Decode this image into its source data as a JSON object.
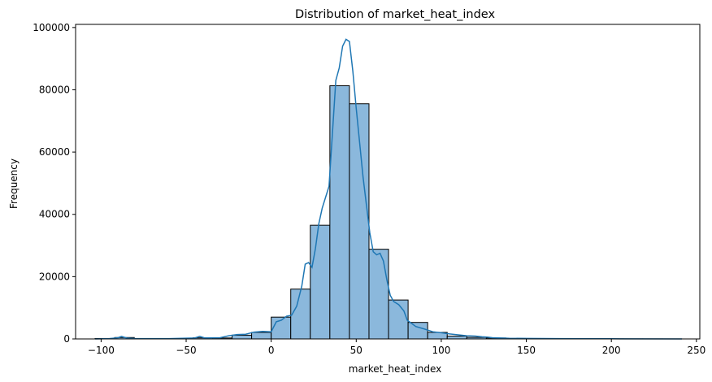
{
  "chart_data": {
    "type": "bar",
    "title": "Distribution of market_heat_index",
    "xlabel": "market_heat_index",
    "ylabel": "Frequency",
    "xlim": [
      -115,
      252
    ],
    "ylim": [
      0,
      101000
    ],
    "xticks": [
      -100,
      -50,
      0,
      50,
      100,
      150,
      200,
      250
    ],
    "xtick_labels": [
      "−100",
      "−50",
      "0",
      "50",
      "100",
      "150",
      "200",
      "250"
    ],
    "yticks": [
      0,
      20000,
      40000,
      60000,
      80000,
      100000
    ],
    "ytick_labels": [
      "0",
      "20000",
      "40000",
      "60000",
      "80000",
      "100000"
    ],
    "bins": [
      {
        "x0": -103.5,
        "x1": -92.0,
        "count": 150
      },
      {
        "x0": -92.0,
        "x1": -80.5,
        "count": 450
      },
      {
        "x0": -80.5,
        "x1": -69.0,
        "count": 100
      },
      {
        "x0": -69.0,
        "x1": -57.5,
        "count": 80
      },
      {
        "x0": -57.5,
        "x1": -46.0,
        "count": 120
      },
      {
        "x0": -46.0,
        "x1": -34.5,
        "count": 350
      },
      {
        "x0": -34.5,
        "x1": -23.0,
        "count": 300
      },
      {
        "x0": -23.0,
        "x1": -11.5,
        "count": 1200
      },
      {
        "x0": -11.5,
        "x1": 0.0,
        "count": 2100
      },
      {
        "x0": 0.0,
        "x1": 11.5,
        "count": 7000
      },
      {
        "x0": 11.5,
        "x1": 23.0,
        "count": 16000
      },
      {
        "x0": 23.0,
        "x1": 34.5,
        "count": 36500
      },
      {
        "x0": 34.5,
        "x1": 46.0,
        "count": 81300
      },
      {
        "x0": 46.0,
        "x1": 57.5,
        "count": 75500
      },
      {
        "x0": 57.5,
        "x1": 69.0,
        "count": 28800
      },
      {
        "x0": 69.0,
        "x1": 80.5,
        "count": 12500
      },
      {
        "x0": 80.5,
        "x1": 92.0,
        "count": 5300
      },
      {
        "x0": 92.0,
        "x1": 103.5,
        "count": 2100
      },
      {
        "x0": 103.5,
        "x1": 115.0,
        "count": 900
      },
      {
        "x0": 115.0,
        "x1": 126.5,
        "count": 500
      },
      {
        "x0": 126.5,
        "x1": 138.0,
        "count": 300
      },
      {
        "x0": 138.0,
        "x1": 149.5,
        "count": 150
      },
      {
        "x0": 149.5,
        "x1": 161.0,
        "count": 100
      },
      {
        "x0": 161.0,
        "x1": 172.5,
        "count": 80
      },
      {
        "x0": 172.5,
        "x1": 184.0,
        "count": 50
      },
      {
        "x0": 184.0,
        "x1": 195.5,
        "count": 40
      },
      {
        "x0": 195.5,
        "x1": 207.0,
        "count": 30
      },
      {
        "x0": 207.0,
        "x1": 218.5,
        "count": 20
      },
      {
        "x0": 218.5,
        "x1": 230.0,
        "count": 15
      },
      {
        "x0": 230.0,
        "x1": 241.5,
        "count": 10
      }
    ],
    "kde": {
      "x": [
        -103.5,
        -95,
        -90,
        -88,
        -85,
        -80,
        -60,
        -45,
        -42,
        -39,
        -30,
        -25,
        -20,
        -15,
        -10,
        -5,
        0,
        3,
        6,
        9,
        12,
        15,
        18,
        20,
        22,
        24,
        26,
        28,
        30,
        32,
        34,
        36,
        38,
        40,
        42,
        44,
        46,
        48,
        50,
        52,
        54,
        56,
        58,
        60,
        62,
        64,
        66,
        68,
        70,
        72,
        75,
        78,
        80,
        85,
        90,
        95,
        100,
        105,
        110,
        115,
        120,
        124,
        127,
        130,
        140,
        150,
        170,
        200,
        241.5
      ],
      "y": [
        0,
        100,
        400,
        800,
        300,
        100,
        100,
        300,
        800,
        300,
        400,
        1000,
        1400,
        1500,
        2200,
        2400,
        2300,
        5500,
        6000,
        7300,
        7600,
        10500,
        17000,
        24000,
        24500,
        23000,
        29000,
        37000,
        42000,
        45500,
        49000,
        66000,
        83000,
        87000,
        94000,
        96200,
        95500,
        86000,
        74000,
        63000,
        52000,
        43000,
        34000,
        28000,
        27000,
        27500,
        25000,
        19000,
        14000,
        12000,
        11000,
        9000,
        6000,
        4000,
        3200,
        2300,
        2000,
        1600,
        1300,
        1000,
        900,
        700,
        600,
        400,
        200,
        150,
        100,
        50,
        0
      ]
    },
    "colors": {
      "bar_fill": "#8bb8dc",
      "bar_edge": "#000000",
      "line": "#1f77b4",
      "axis": "#000000"
    },
    "grid": false,
    "legend": "none"
  }
}
